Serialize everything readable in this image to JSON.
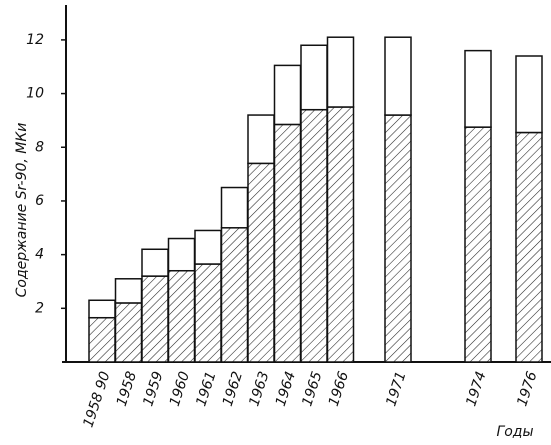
{
  "chart_data": {
    "type": "stacked-bar",
    "y_label": "Содержание Sr-90, МКи",
    "x_label": "Годы",
    "categories": [
      "1958 90",
      "1958",
      "1959",
      "1960",
      "1961",
      "1962",
      "1963",
      "1964",
      "1965",
      "1966",
      "1971",
      "1974",
      "1976"
    ],
    "series": [
      {
        "color": "#222222",
        "pattern": "hatch",
        "values": [
          1.65,
          2.2,
          3.2,
          3.4,
          3.65,
          5.0,
          7.4,
          8.85,
          9.4,
          9.5,
          9.2,
          8.75,
          8.55
        ]
      },
      {
        "color": "#ffffff",
        "values": [
          0.65,
          0.9,
          1.0,
          1.2,
          1.25,
          1.5,
          1.8,
          2.2,
          2.4,
          2.6,
          2.9,
          2.85,
          2.85
        ]
      }
    ],
    "ylim": [
      0,
      13.3
    ],
    "yticks": [
      2,
      4,
      6,
      8,
      10,
      12
    ]
  }
}
